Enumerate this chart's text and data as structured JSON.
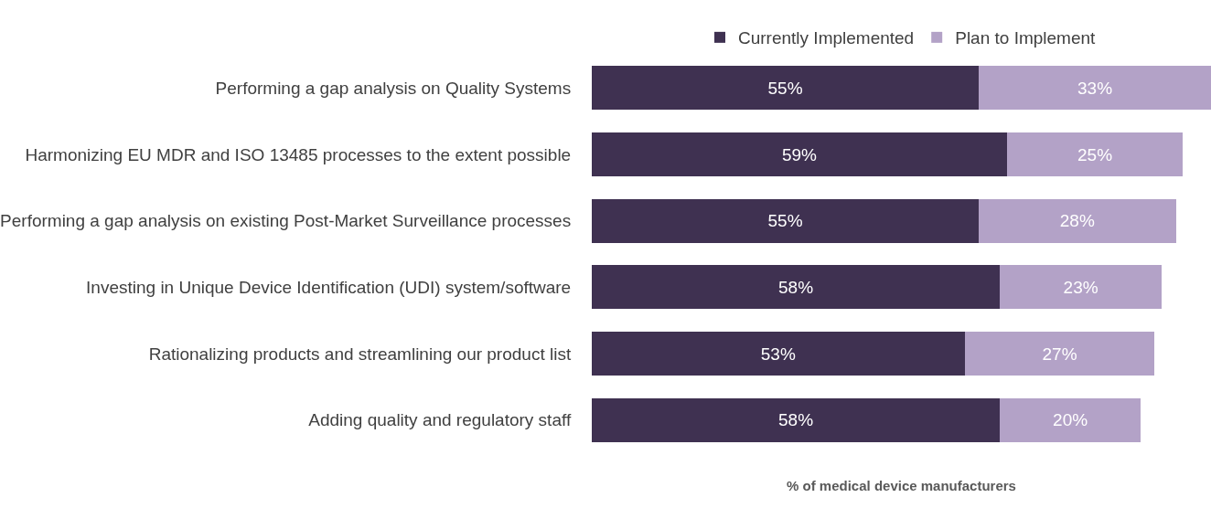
{
  "chart_data": {
    "type": "bar",
    "orientation": "horizontal",
    "stacked": true,
    "legend": "top",
    "xlabel": "% of medical device manufacturers",
    "categories": [
      "Performing a gap analysis on Quality Systems",
      "Harmonizing EU MDR and ISO 13485 processes to the extent possible",
      "Performing a gap analysis on existing Post-Market Surveillance processes",
      "Investing in Unique Device Identification (UDI) system/software",
      "Rationalizing products and streamlining our product list",
      "Adding quality and regulatory staff"
    ],
    "series": [
      {
        "name": "Currently Implemented",
        "color": "#3f3151",
        "values": [
          55,
          59,
          55,
          58,
          53,
          58
        ],
        "value_labels": [
          "55%",
          "59%",
          "55%",
          "58%",
          "53%",
          "58%"
        ]
      },
      {
        "name": "Plan to Implement",
        "color": "#b3a2c7",
        "values": [
          33,
          25,
          28,
          23,
          27,
          20
        ],
        "value_labels": [
          "33%",
          "25%",
          "28%",
          "23%",
          "27%",
          "20%"
        ]
      }
    ]
  }
}
